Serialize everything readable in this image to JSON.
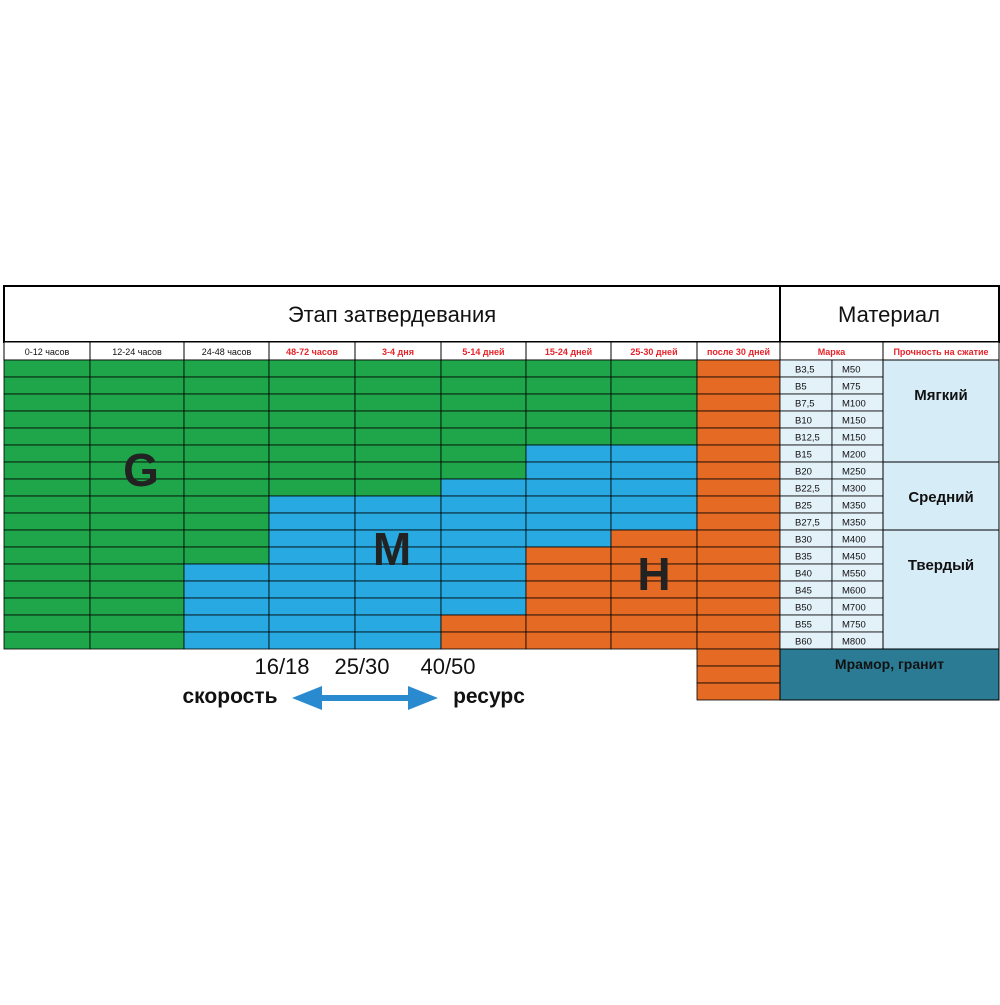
{
  "header": {
    "stage_title": "Этап затвердевания",
    "material_title": "Материал"
  },
  "columns": [
    {
      "label": "0-12 часов",
      "highlight": false
    },
    {
      "label": "12-24 часов",
      "highlight": false
    },
    {
      "label": "24-48 часов",
      "highlight": false
    },
    {
      "label": "48-72 часов",
      "highlight": true
    },
    {
      "label": "3-4 дня",
      "highlight": true
    },
    {
      "label": "5-14 дней",
      "highlight": true
    },
    {
      "label": "15-24 дней",
      "highlight": true
    },
    {
      "label": "25-30 дней",
      "highlight": true
    },
    {
      "label": "после 30 дней",
      "highlight": true
    }
  ],
  "material_columns": {
    "grade": "Марка",
    "strength": "Прочность на сжатие"
  },
  "grades": [
    {
      "b": "B3,5",
      "m": "M50"
    },
    {
      "b": "B5",
      "m": "M75"
    },
    {
      "b": "B7,5",
      "m": "M100"
    },
    {
      "b": "B10",
      "m": "M150"
    },
    {
      "b": "B12,5",
      "m": "M150"
    },
    {
      "b": "B15",
      "m": "M200"
    },
    {
      "b": "B20",
      "m": "M250"
    },
    {
      "b": "B22,5",
      "m": "M300"
    },
    {
      "b": "B25",
      "m": "M350"
    },
    {
      "b": "B27,5",
      "m": "M350"
    },
    {
      "b": "B30",
      "m": "M400"
    },
    {
      "b": "B35",
      "m": "M450"
    },
    {
      "b": "B40",
      "m": "M550"
    },
    {
      "b": "B45",
      "m": "M600"
    },
    {
      "b": "B50",
      "m": "M700"
    },
    {
      "b": "B55",
      "m": "M750"
    },
    {
      "b": "B60",
      "m": "M800"
    }
  ],
  "strength_groups": [
    {
      "label": "Мягкий",
      "rows": 6
    },
    {
      "label": "Средний",
      "rows": 4
    },
    {
      "label": "Твердый",
      "rows": 7
    }
  ],
  "extra_material": "Мрамор, гранит",
  "zone_labels": {
    "g": "G",
    "m": "M",
    "h": "H"
  },
  "zone_matrix": [
    "GGGGGGGGO",
    "GGGGGGGGO",
    "GGGGGGGGO",
    "GGGGGGGGO",
    "GGGGGGGGO",
    "GGGGGGMMO",
    "GGGGGGMMO",
    "GGGGGMMMO",
    "GGGMMMMMO",
    "GGGMMMMMO",
    "GGGMMMMHO",
    "GGGMMMHHO",
    "GGMMMMHHO",
    "GGMMMMHHO",
    "GGMMMMHHO",
    "GGMMMHHHO",
    "GGMMMHHHO"
  ],
  "extra_orange_rows": 3,
  "legend": {
    "values": [
      "16/18",
      "25/30",
      "40/50"
    ],
    "left_label": "скорость",
    "right_label": "ресурс"
  },
  "colors": {
    "green": "#1fa64a",
    "blue": "#29a9e1",
    "orange": "#e56a24",
    "grade_bg": "#e3f1f9",
    "group_bg": "#d6ecf7",
    "dark_teal": "#2b7b95",
    "red_text": "#e8232a",
    "arrow": "#2a8ad0"
  }
}
